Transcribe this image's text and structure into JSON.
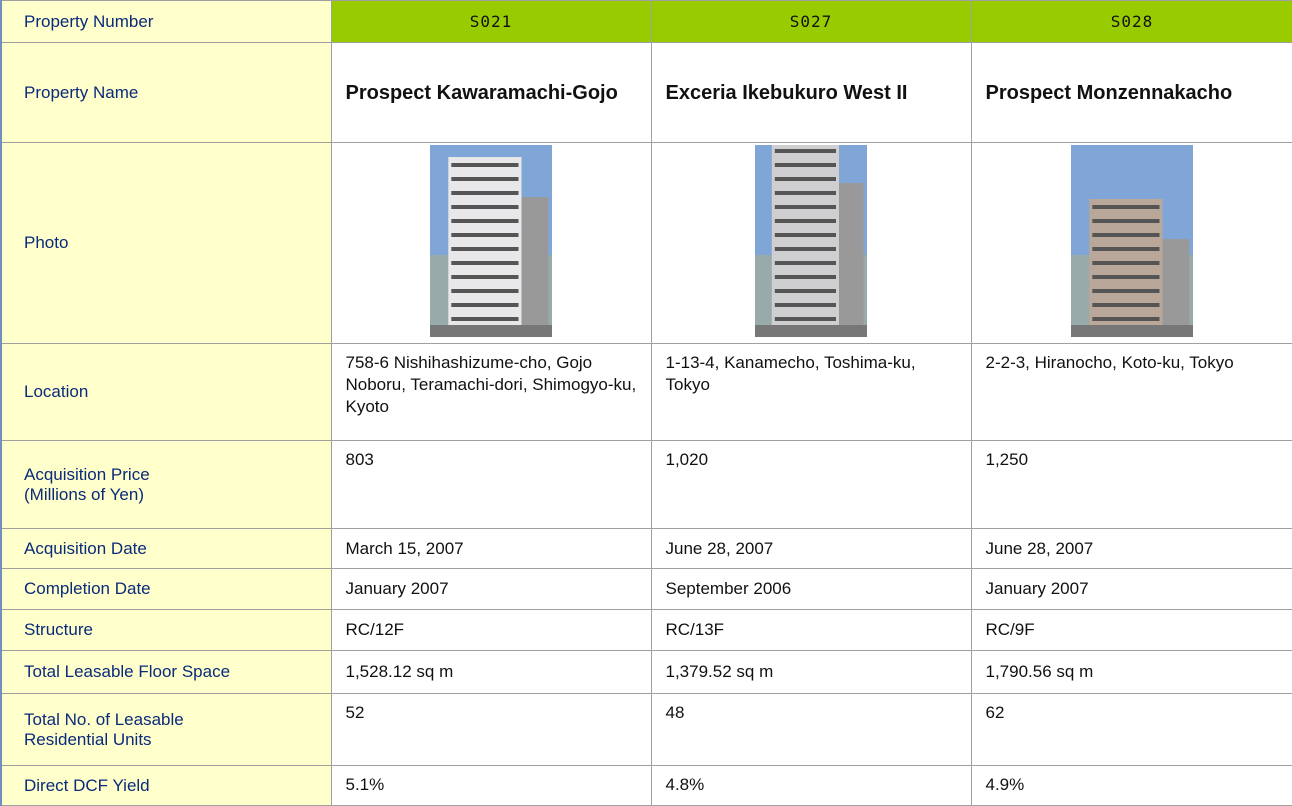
{
  "table": {
    "row_labels": [
      "Property Number",
      "Property Name",
      "Photo",
      "Location",
      "Acquisition Price\n(Millions of Yen)",
      "Acquisition Date",
      "Completion Date",
      "Structure",
      "Total Leasable Floor Space",
      "Total No. of Leasable\nResidential Units",
      "Direct DCF Yield"
    ],
    "properties": [
      {
        "number": "S021",
        "name": "Prospect Kawaramachi-Gojo",
        "location": "758-6 Nishihashizume-cho, Gojo Noboru, Teramachi-dori, Shimogyo-ku, Kyoto",
        "price": "803",
        "acquisition_date": "March 15, 2007",
        "completion_date": "January 2007",
        "structure": "RC/12F",
        "floor_space": "1,528.12 sq m",
        "units": "52",
        "yield": "5.1%"
      },
      {
        "number": "S027",
        "name": "Exceria Ikebukuro West II",
        "location": "1-13-4, Kanamecho, Toshima-ku, Tokyo",
        "price": "1,020",
        "acquisition_date": "June 28, 2007",
        "completion_date": "September 2006",
        "structure": "RC/13F",
        "floor_space": "1,379.52 sq m",
        "units": "48",
        "yield": "4.8%"
      },
      {
        "number": "S028",
        "name": "Prospect Monzennakacho",
        "location": "2-2-3, Hiranocho, Koto-ku, Tokyo",
        "price": "1,250",
        "acquisition_date": "June 28, 2007",
        "completion_date": "January 2007",
        "structure": "RC/9F",
        "floor_space": "1,790.56 sq m",
        "units": "62",
        "yield": "4.9%"
      }
    ]
  }
}
